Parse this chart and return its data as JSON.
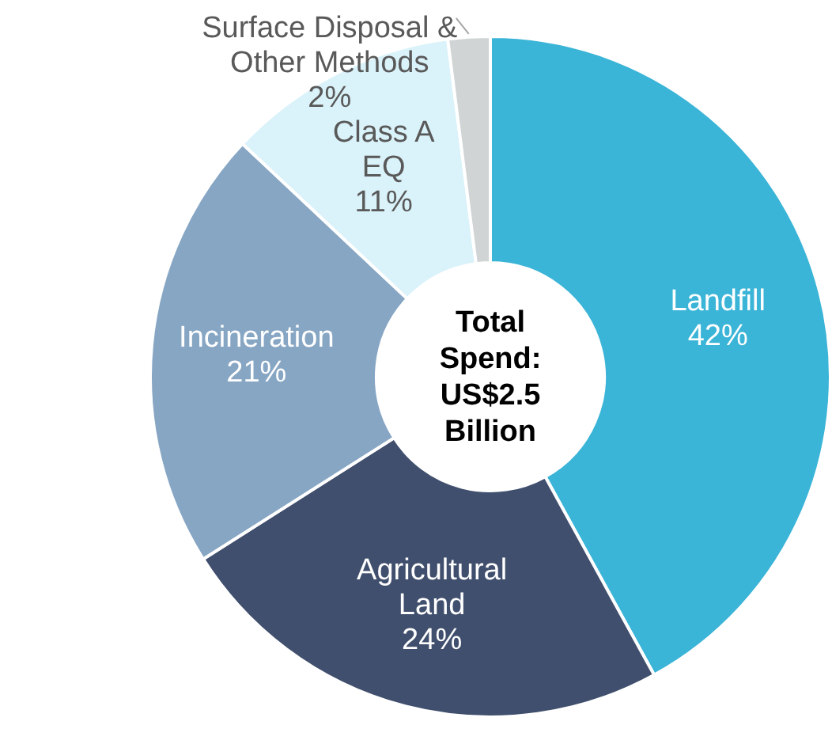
{
  "chart_data": {
    "type": "donut",
    "categories": [
      "Landfill",
      "Agricultural\nLand",
      "Incineration",
      "Class A\nEQ",
      "Surface Disposal &\nOther Methods"
    ],
    "values": [
      42,
      24,
      21,
      11,
      2
    ],
    "value_labels": [
      "42%",
      "24%",
      "21%",
      "11%",
      "2%"
    ],
    "colors": [
      "#3ab4d7",
      "#404f6d",
      "#87a6c4",
      "#daf2f9",
      "#d0d4d4"
    ],
    "annotations": [
      "Total Spend: US$2.5 Billion"
    ]
  }
}
